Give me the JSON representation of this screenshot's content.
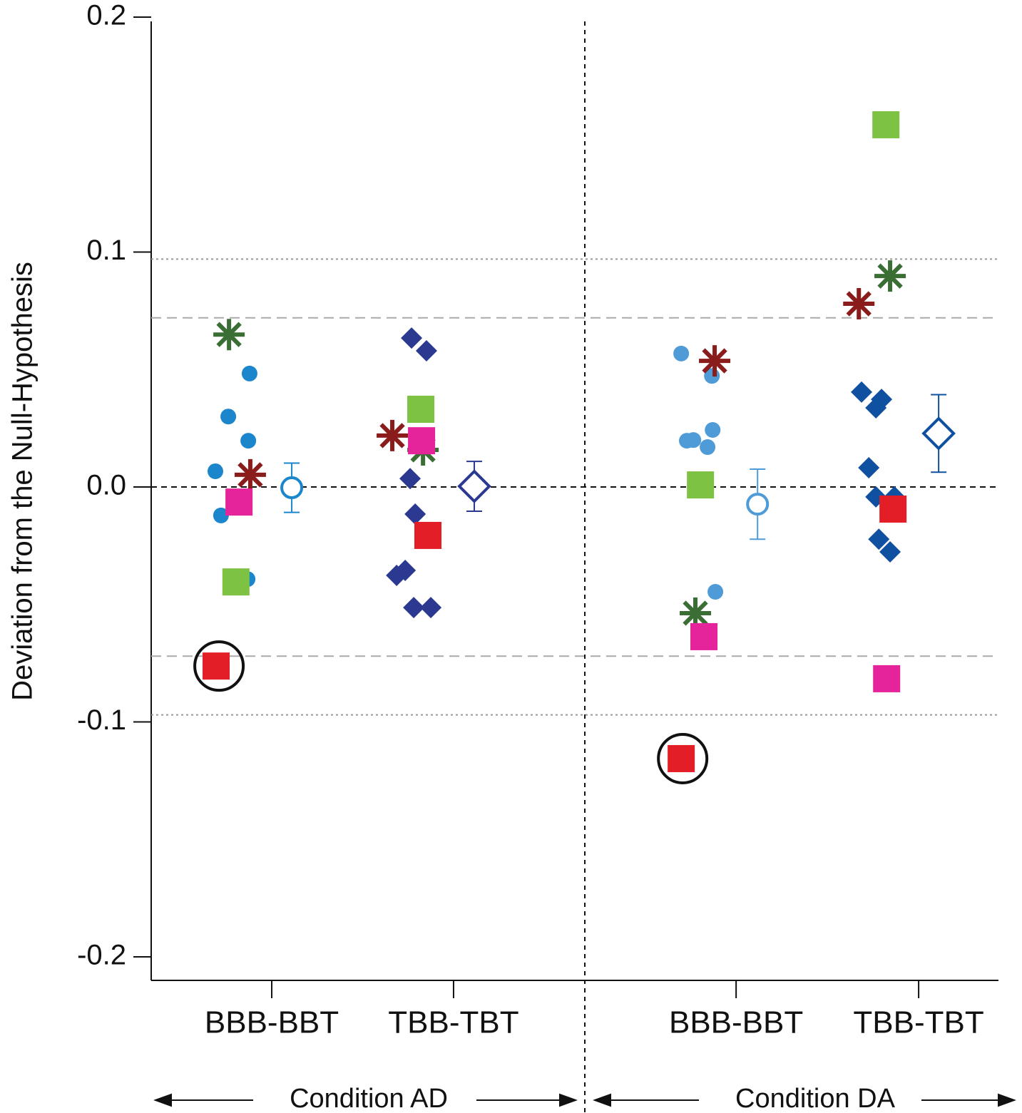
{
  "chart_data": {
    "type": "scatter",
    "y_label": "Deviation from the Null-Hypothesis",
    "ylim": [
      -0.21,
      0.2
    ],
    "yticks": [
      0.2,
      0.1,
      {
        "value": 0,
        "label": "0.0"
      },
      -0.1,
      -0.2
    ],
    "xlim": [
      0,
      4.66
    ],
    "xticks": [
      {
        "value": 0.663,
        "label": "BBB-BBT"
      },
      {
        "value": 1.663,
        "label": "TBB-TBT"
      },
      {
        "value": 3.217,
        "label": "BBB-BBT"
      },
      {
        "value": 4.221,
        "label": "TBB-TBT"
      }
    ],
    "dividers": [
      2.385
    ],
    "zero_line": 0,
    "reference_lines": [
      {
        "value": 0.097,
        "style": "dotted"
      },
      {
        "value": 0.072,
        "style": "dashed"
      },
      {
        "value": -0.072,
        "style": "dashed"
      },
      {
        "value": -0.097,
        "style": "dotted"
      }
    ],
    "annotations": [
      "Condition AD",
      "Condition DA"
    ],
    "series": [
      {
        "marker": "circle",
        "color": "#1b86cb",
        "x": [
          0.541,
          0.424,
          0.534,
          0.353,
          0.384,
          0.53
        ],
        "values": [
          0.0483,
          0.03,
          0.0197,
          0.0067,
          -0.0121,
          -0.0392
        ]
      },
      {
        "marker": "circle",
        "color": "#4e9bd8",
        "x": [
          2.915,
          3.084,
          2.946,
          2.982,
          3.088,
          3.06,
          3.103
        ],
        "values": [
          0.0568,
          0.0473,
          0.0197,
          0.02,
          0.0243,
          0.017,
          -0.0446
        ]
      },
      {
        "marker": "diamond",
        "color": "#2b3990",
        "x": [
          1.432,
          1.514,
          1.424,
          1.452,
          1.35,
          1.397,
          1.444,
          1.538
        ],
        "values": [
          0.0634,
          0.058,
          0.0036,
          -0.0115,
          -0.0376,
          -0.0355,
          -0.0513,
          -0.0513
        ]
      },
      {
        "marker": "diamond",
        "color": "#1050a0",
        "x": [
          3.907,
          4.017,
          3.986,
          3.947,
          3.986,
          4.088,
          4.002,
          4.064
        ],
        "values": [
          0.0404,
          0.0373,
          0.0337,
          0.0082,
          -0.0042,
          -0.0042,
          -0.0222,
          -0.0276
        ]
      },
      {
        "marker": "asterisk",
        "color": "#3a6e35",
        "x": [
          0.428,
          1.495,
          2.993,
          4.064
        ],
        "values": [
          0.0649,
          0.0158,
          -0.0537,
          0.0898
        ]
      },
      {
        "marker": "asterisk",
        "color": "#8b1c1c",
        "x": [
          0.545,
          1.326,
          3.099,
          3.892
        ],
        "values": [
          0.0052,
          0.0219,
          0.0537,
          0.078
        ]
      },
      {
        "marker": "square",
        "color": "#7dc242",
        "x": [
          0.466,
          1.483,
          3.021,
          4.041
        ],
        "values": [
          -0.0404,
          0.0331,
          0.0009,
          0.1542
        ]
      },
      {
        "marker": "square",
        "color": "#e5239a",
        "x": [
          0.483,
          1.487,
          3.04,
          4.045
        ],
        "values": [
          -0.0064,
          0.0197,
          -0.0637,
          -0.0816
        ]
      },
      {
        "marker": "square",
        "color": "#e41e26",
        "x": [
          0.357,
          1.522,
          2.915,
          4.08
        ],
        "values": [
          -0.0762,
          -0.0206,
          -0.1156,
          -0.0094
        ]
      },
      {
        "marker": "ring",
        "color": "#111111",
        "x": [
          0.373,
          2.923
        ],
        "values": [
          -0.0762,
          -0.1156
        ]
      },
      {
        "marker": "open-circle",
        "color": "#1b86cb",
        "x": [
          0.773
        ],
        "values": [
          -0.0003
        ],
        "errors": [
          0.0105
        ]
      },
      {
        "marker": "open-diamond",
        "color": "#2b3990",
        "x": [
          1.777
        ],
        "values": [
          0.0003
        ],
        "errors": [
          0.0106
        ]
      },
      {
        "marker": "open-circle",
        "color": "#4e9bd8",
        "x": [
          3.335
        ],
        "values": [
          -0.0073
        ],
        "errors": [
          0.0149
        ]
      },
      {
        "marker": "open-diamond",
        "color": "#1050a0",
        "x": [
          4.331
        ],
        "values": [
          0.0228
        ],
        "errors": [
          0.0165
        ]
      }
    ]
  }
}
